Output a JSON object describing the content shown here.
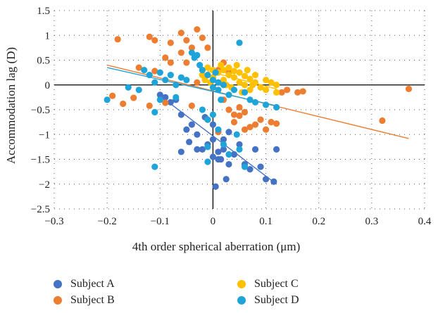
{
  "chart_data": {
    "type": "scatter",
    "xlabel": "4th order spherical aberration (μm)",
    "ylabel": "Accommodation lag (D)",
    "xlim": [
      -0.3,
      0.4
    ],
    "ylim": [
      -2.5,
      1.5
    ],
    "xticks": [
      "−0.3",
      "−0.2",
      "−0.1",
      "0",
      "0.1",
      "0.2",
      "0.3",
      "0.4"
    ],
    "yticks": [
      "1.5",
      "1",
      "0.5",
      "0",
      "−0.5",
      "−1",
      "−1.5",
      "−2",
      "−2.5"
    ],
    "grid": "dotted",
    "legend_position": "bottom",
    "series": [
      {
        "name": "Subject A",
        "color": "#4472C4",
        "trendline": [
          [
            -0.1,
            -0.22
          ],
          [
            0.12,
            -2.0
          ]
        ],
        "points": [
          [
            -0.1,
            -0.2
          ],
          [
            -0.09,
            -0.25
          ],
          [
            -0.08,
            -0.35
          ],
          [
            -0.07,
            -0.3
          ],
          [
            -0.06,
            -0.6
          ],
          [
            -0.05,
            -0.9
          ],
          [
            -0.04,
            -0.8
          ],
          [
            -0.03,
            -1.3
          ],
          [
            -0.03,
            -1.0
          ],
          [
            -0.02,
            -1.3
          ],
          [
            -0.01,
            -1.2
          ],
          [
            0.0,
            -0.8
          ],
          [
            0.0,
            -1.1
          ],
          [
            0.01,
            -1.35
          ],
          [
            0.01,
            -1.5
          ],
          [
            0.02,
            -1.3
          ],
          [
            0.02,
            -1.1
          ],
          [
            0.03,
            -1.6
          ],
          [
            0.04,
            -1.4
          ],
          [
            0.05,
            -1.2
          ],
          [
            0.06,
            -1.6
          ],
          [
            0.07,
            -1.7
          ],
          [
            0.08,
            -1.3
          ],
          [
            0.09,
            -1.65
          ],
          [
            0.1,
            -1.9
          ],
          [
            0.115,
            -1.95
          ],
          [
            0.12,
            -1.3
          ],
          [
            0.005,
            -2.05
          ],
          [
            0.025,
            -1.9
          ],
          [
            -0.045,
            -1.15
          ],
          [
            -0.015,
            -0.65
          ],
          [
            0.03,
            -0.95
          ],
          [
            0.0,
            -1.45
          ],
          [
            0.015,
            -1.5
          ],
          [
            -0.06,
            -1.35
          ]
        ]
      },
      {
        "name": "Subject B",
        "color": "#ED7D31",
        "trendline": [
          [
            -0.2,
            0.4
          ],
          [
            0.37,
            -1.08
          ]
        ],
        "points": [
          [
            -0.18,
            0.92
          ],
          [
            -0.12,
            0.97
          ],
          [
            -0.11,
            0.9
          ],
          [
            -0.08,
            0.85
          ],
          [
            -0.06,
            1.05
          ],
          [
            -0.05,
            0.9
          ],
          [
            -0.04,
            0.75
          ],
          [
            -0.03,
            1.12
          ],
          [
            -0.02,
            0.95
          ],
          [
            -0.01,
            0.75
          ],
          [
            -0.06,
            0.65
          ],
          [
            -0.09,
            0.55
          ],
          [
            -0.08,
            0.45
          ],
          [
            -0.14,
            0.35
          ],
          [
            -0.11,
            0.28
          ],
          [
            -0.19,
            -0.22
          ],
          [
            -0.17,
            -0.38
          ],
          [
            -0.15,
            -0.26
          ],
          [
            -0.12,
            -0.42
          ],
          [
            -0.09,
            -0.36
          ],
          [
            -0.04,
            -0.42
          ],
          [
            0.02,
            -0.3
          ],
          [
            0.03,
            -0.5
          ],
          [
            0.05,
            -0.62
          ],
          [
            0.06,
            -0.55
          ],
          [
            0.07,
            -0.85
          ],
          [
            0.08,
            -0.8
          ],
          [
            0.09,
            -0.7
          ],
          [
            0.1,
            -0.9
          ],
          [
            0.11,
            -0.75
          ],
          [
            0.12,
            -0.78
          ],
          [
            0.13,
            -0.15
          ],
          [
            0.14,
            -0.1
          ],
          [
            0.16,
            -0.15
          ],
          [
            0.17,
            -0.13
          ],
          [
            0.32,
            -0.72
          ],
          [
            0.37,
            -0.08
          ],
          [
            0.06,
            -0.9
          ],
          [
            0.04,
            -0.75
          ],
          [
            0.01,
            -0.95
          ],
          [
            -0.01,
            -0.7
          ],
          [
            0.0,
            0.15
          ],
          [
            0.01,
            0.3
          ],
          [
            0.02,
            0.45
          ],
          [
            0.03,
            0.25
          ],
          [
            -0.02,
            0.2
          ],
          [
            -0.03,
            0.05
          ],
          [
            -0.05,
            0.45
          ],
          [
            0.04,
            -0.6
          ],
          [
            0.05,
            -0.45
          ]
        ]
      },
      {
        "name": "Subject C",
        "color": "#FFC000",
        "trendline": [
          [
            -0.01,
            0.28
          ],
          [
            0.12,
            -0.08
          ]
        ],
        "points": [
          [
            -0.02,
            0.2
          ],
          [
            -0.01,
            0.35
          ],
          [
            0.0,
            0.3
          ],
          [
            0.0,
            0.15
          ],
          [
            0.01,
            0.25
          ],
          [
            0.01,
            0.05
          ],
          [
            0.02,
            0.3
          ],
          [
            0.02,
            0.1
          ],
          [
            0.03,
            0.2
          ],
          [
            0.03,
            0.35
          ],
          [
            0.04,
            0.15
          ],
          [
            0.04,
            0.28
          ],
          [
            0.05,
            0.05
          ],
          [
            0.05,
            0.25
          ],
          [
            0.06,
            0.18
          ],
          [
            0.06,
            0.0
          ],
          [
            0.07,
            0.12
          ],
          [
            0.07,
            -0.1
          ],
          [
            0.08,
            0.05
          ],
          [
            0.08,
            0.2
          ],
          [
            0.09,
            -0.05
          ],
          [
            0.1,
            0.1
          ],
          [
            0.1,
            -0.1
          ],
          [
            0.11,
            0.05
          ],
          [
            0.12,
            -0.15
          ],
          [
            0.12,
            0.0
          ],
          [
            0.015,
            0.4
          ],
          [
            -0.005,
            0.05
          ],
          [
            0.035,
            -0.05
          ],
          [
            0.045,
            0.4
          ],
          [
            0.055,
            -0.15
          ],
          [
            0.025,
            0.0
          ],
          [
            -0.015,
            0.1
          ],
          [
            0.065,
            0.3
          ],
          [
            0.075,
            0.0
          ]
        ]
      },
      {
        "name": "Subject D",
        "color": "#1FA4D9",
        "trendline": [
          [
            -0.2,
            0.35
          ],
          [
            0.12,
            -0.42
          ]
        ],
        "points": [
          [
            -0.2,
            -0.3
          ],
          [
            -0.16,
            -0.05
          ],
          [
            -0.14,
            -0.1
          ],
          [
            -0.13,
            0.3
          ],
          [
            -0.12,
            0.2
          ],
          [
            -0.11,
            0.05
          ],
          [
            -0.1,
            0.25
          ],
          [
            -0.09,
            0.1
          ],
          [
            -0.08,
            0.2
          ],
          [
            -0.07,
            0.0
          ],
          [
            -0.06,
            0.15
          ],
          [
            -0.05,
            0.1
          ],
          [
            -0.04,
            0.65
          ],
          [
            -0.035,
            0.55
          ],
          [
            -0.03,
            0.6
          ],
          [
            -0.02,
            0.3
          ],
          [
            -0.01,
            0.2
          ],
          [
            0.0,
            0.1
          ],
          [
            0.0,
            -0.05
          ],
          [
            0.01,
            0.05
          ],
          [
            0.01,
            -0.1
          ],
          [
            0.02,
            0.0
          ],
          [
            0.03,
            -0.2
          ],
          [
            0.04,
            -0.1
          ],
          [
            0.05,
            0.85
          ],
          [
            0.06,
            -0.15
          ],
          [
            0.07,
            -0.3
          ],
          [
            0.08,
            -0.35
          ],
          [
            0.1,
            -0.4
          ],
          [
            0.12,
            -0.45
          ],
          [
            -0.02,
            -0.5
          ],
          [
            -0.01,
            -0.7
          ],
          [
            0.0,
            -0.6
          ],
          [
            0.01,
            -0.9
          ],
          [
            0.02,
            -1.2
          ],
          [
            0.03,
            -1.4
          ],
          [
            0.05,
            -1.3
          ],
          [
            -0.01,
            -1.55
          ],
          [
            -0.1,
            -0.3
          ],
          [
            -0.07,
            -0.25
          ],
          [
            0.06,
            -1.65
          ],
          [
            -0.11,
            -0.55
          ],
          [
            0.005,
            0.25
          ],
          [
            -0.025,
            0.4
          ],
          [
            0.015,
            -0.3
          ]
        ]
      },
      {
        "name": "",
        "color": "#1FA4D9",
        "points": [
          [
            -0.11,
            -1.65
          ],
          [
            -0.01,
            -1.25
          ],
          [
            0.045,
            -1.0
          ]
        ]
      }
    ]
  },
  "legend": [
    {
      "label": "Subject A",
      "color": "#4472C4"
    },
    {
      "label": "Subject B",
      "color": "#ED7D31"
    },
    {
      "label": "Subject C",
      "color": "#FFC000"
    },
    {
      "label": "Subject D",
      "color": "#1FA4D9"
    }
  ]
}
